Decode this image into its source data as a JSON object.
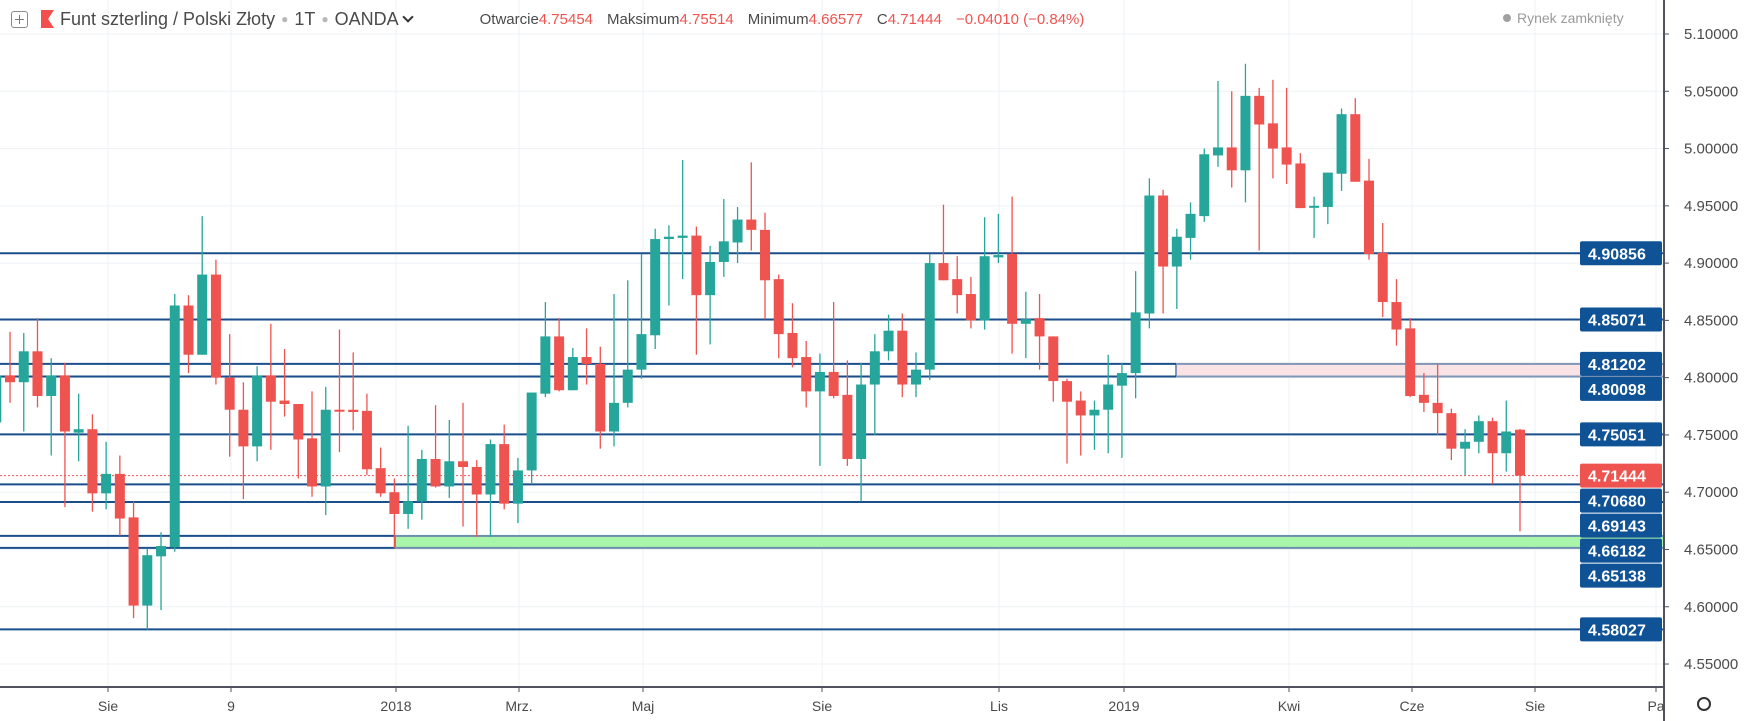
{
  "header": {
    "symbol_title": "Funt szterling / Polski Złoty",
    "interval": "1T",
    "source": "OANDA",
    "stats": [
      {
        "label": "Otwarcie",
        "value": "4.75454"
      },
      {
        "label": "Maksimum",
        "value": "4.75514"
      },
      {
        "label": "Minimum",
        "value": "4.66577"
      },
      {
        "label": "C",
        "value": "4.71444"
      }
    ],
    "change": "−0.04010 (−0.84%)",
    "market_status": "Rynek zamknięty"
  },
  "colors": {
    "up": "#26a69a",
    "down": "#ef5350",
    "level_line": "#1a4f8c",
    "level_label_bg": "#0f5296",
    "current_price": "#ef5350",
    "support_band": "#a9f5a9",
    "resistance_band": "#f9e3e5"
  },
  "chart_data": {
    "type": "candlestick",
    "title": "Funt szterling / Polski Złoty · 1T · OANDA",
    "ylim": [
      4.53,
      5.12
    ],
    "y_ticks": [
      "5.10000",
      "5.05000",
      "5.00000",
      "4.95000",
      "4.90000",
      "4.85000",
      "4.80000",
      "4.75000",
      "4.70000",
      "4.65000",
      "4.60000",
      "4.55000"
    ],
    "x_tick_labels": [
      "Sie",
      "9",
      "2018",
      "Mrz.",
      "Maj",
      "Sie",
      "Lis",
      "2019",
      "Kwi",
      "Cze",
      "Sie",
      "Pa"
    ],
    "grid": true,
    "current_price": "4.71444",
    "levels": [
      "4.90856",
      "4.85071",
      "4.81202",
      "4.80098",
      "4.75051",
      "4.70680",
      "4.69143",
      "4.66182",
      "4.65138",
      "4.58027"
    ],
    "bands": [
      {
        "name": "resistance-zone",
        "from": 4.80098,
        "to": 4.81202
      },
      {
        "name": "support-zone",
        "from": 4.65138,
        "to": 4.66182
      }
    ],
    "candles_ohlc": [
      [
        4.761,
        4.806,
        4.758,
        4.802
      ],
      [
        4.802,
        4.84,
        4.778,
        4.796
      ],
      [
        4.796,
        4.839,
        4.753,
        4.823
      ],
      [
        4.823,
        4.852,
        4.774,
        4.784
      ],
      [
        4.784,
        4.817,
        4.732,
        4.802
      ],
      [
        4.802,
        4.813,
        4.687,
        4.753
      ],
      [
        4.752,
        4.786,
        4.727,
        4.755
      ],
      [
        4.755,
        4.768,
        4.683,
        4.699
      ],
      [
        4.699,
        4.744,
        4.685,
        4.716
      ],
      [
        4.716,
        4.732,
        4.662,
        4.677
      ],
      [
        4.678,
        4.692,
        4.59,
        4.601
      ],
      [
        4.601,
        4.651,
        4.58,
        4.645
      ],
      [
        4.644,
        4.665,
        4.597,
        4.653
      ],
      [
        4.652,
        4.873,
        4.648,
        4.863
      ],
      [
        4.863,
        4.872,
        4.804,
        4.82
      ],
      [
        4.82,
        4.941,
        4.82,
        4.89
      ],
      [
        4.89,
        4.903,
        4.794,
        4.8
      ],
      [
        4.8,
        4.838,
        4.731,
        4.772
      ],
      [
        4.772,
        4.796,
        4.694,
        4.74
      ],
      [
        4.74,
        4.81,
        4.727,
        4.802
      ],
      [
        4.802,
        4.847,
        4.737,
        4.779
      ],
      [
        4.78,
        4.825,
        4.766,
        4.777
      ],
      [
        4.777,
        4.777,
        4.712,
        4.746
      ],
      [
        4.747,
        4.788,
        4.696,
        4.705
      ],
      [
        4.705,
        4.792,
        4.68,
        4.772
      ],
      [
        4.772,
        4.842,
        4.735,
        4.771
      ],
      [
        4.772,
        4.822,
        4.754,
        4.77
      ],
      [
        4.771,
        4.786,
        4.715,
        4.72
      ],
      [
        4.721,
        4.739,
        4.696,
        4.699
      ],
      [
        4.7,
        4.712,
        4.651,
        4.681
      ],
      [
        4.681,
        4.758,
        4.668,
        4.692
      ],
      [
        4.692,
        4.737,
        4.676,
        4.729
      ],
      [
        4.729,
        4.776,
        4.704,
        4.705
      ],
      [
        4.705,
        4.763,
        4.695,
        4.727
      ],
      [
        4.727,
        4.778,
        4.67,
        4.722
      ],
      [
        4.722,
        4.728,
        4.661,
        4.698
      ],
      [
        4.698,
        4.746,
        4.661,
        4.742
      ],
      [
        4.742,
        4.759,
        4.685,
        4.69
      ],
      [
        4.69,
        4.73,
        4.673,
        4.719
      ],
      [
        4.719,
        4.787,
        4.708,
        4.787
      ],
      [
        4.786,
        4.866,
        4.783,
        4.836
      ],
      [
        4.836,
        4.852,
        4.788,
        4.789
      ],
      [
        4.789,
        4.826,
        4.789,
        4.818
      ],
      [
        4.818,
        4.843,
        4.794,
        4.812
      ],
      [
        4.812,
        4.827,
        4.738,
        4.753
      ],
      [
        4.753,
        4.873,
        4.74,
        4.778
      ],
      [
        4.778,
        4.885,
        4.774,
        4.807
      ],
      [
        4.807,
        4.908,
        4.799,
        4.838
      ],
      [
        4.837,
        4.93,
        4.825,
        4.921
      ],
      [
        4.921,
        4.933,
        4.863,
        4.923
      ],
      [
        4.922,
        4.99,
        4.886,
        4.924
      ],
      [
        4.924,
        4.932,
        4.82,
        4.872
      ],
      [
        4.872,
        4.915,
        4.829,
        4.901
      ],
      [
        4.901,
        4.956,
        4.888,
        4.919
      ],
      [
        4.918,
        4.949,
        4.9,
        4.938
      ],
      [
        4.938,
        4.988,
        4.911,
        4.929
      ],
      [
        4.929,
        4.944,
        4.851,
        4.885
      ],
      [
        4.886,
        4.89,
        4.817,
        4.838
      ],
      [
        4.839,
        4.865,
        4.809,
        4.817
      ],
      [
        4.818,
        4.832,
        4.774,
        4.788
      ],
      [
        4.788,
        4.821,
        4.723,
        4.805
      ],
      [
        4.805,
        4.866,
        4.782,
        4.784
      ],
      [
        4.785,
        4.815,
        4.723,
        4.729
      ],
      [
        4.729,
        4.813,
        4.692,
        4.794
      ],
      [
        4.794,
        4.838,
        4.75,
        4.823
      ],
      [
        4.823,
        4.855,
        4.815,
        4.841
      ],
      [
        4.841,
        4.856,
        4.783,
        4.794
      ],
      [
        4.794,
        4.822,
        4.783,
        4.807
      ],
      [
        4.807,
        4.908,
        4.798,
        4.9
      ],
      [
        4.9,
        4.951,
        4.885,
        4.885
      ],
      [
        4.886,
        4.906,
        4.856,
        4.872
      ],
      [
        4.873,
        4.888,
        4.843,
        4.85
      ],
      [
        4.85,
        4.94,
        4.842,
        4.906
      ],
      [
        4.905,
        4.943,
        4.9,
        4.907
      ],
      [
        4.908,
        4.958,
        4.821,
        4.847
      ],
      [
        4.847,
        4.875,
        4.817,
        4.851
      ],
      [
        4.852,
        4.873,
        4.807,
        4.836
      ],
      [
        4.836,
        4.836,
        4.779,
        4.797
      ],
      [
        4.797,
        4.799,
        4.725,
        4.779
      ],
      [
        4.78,
        4.788,
        4.732,
        4.767
      ],
      [
        4.767,
        4.78,
        4.737,
        4.772
      ],
      [
        4.772,
        4.82,
        4.734,
        4.794
      ],
      [
        4.793,
        4.813,
        4.73,
        4.804
      ],
      [
        4.804,
        4.893,
        4.782,
        4.857
      ],
      [
        4.856,
        4.974,
        4.843,
        4.959
      ],
      [
        4.959,
        4.964,
        4.856,
        4.897
      ],
      [
        4.897,
        4.93,
        4.86,
        4.923
      ],
      [
        4.922,
        4.953,
        4.903,
        4.943
      ],
      [
        4.941,
        5.0,
        4.936,
        4.995
      ],
      [
        4.994,
        5.059,
        4.984,
        5.001
      ],
      [
        5.001,
        5.05,
        4.966,
        4.981
      ],
      [
        4.981,
        5.074,
        4.953,
        5.046
      ],
      [
        5.046,
        5.053,
        4.911,
        5.021
      ],
      [
        5.022,
        5.06,
        4.974,
        5.0
      ],
      [
        5.001,
        5.053,
        4.969,
        4.986
      ],
      [
        4.987,
        4.996,
        4.948,
        4.948
      ],
      [
        4.949,
        4.958,
        4.922,
        4.95
      ],
      [
        4.949,
        4.979,
        4.934,
        4.979
      ],
      [
        4.978,
        5.035,
        4.963,
        5.03
      ],
      [
        5.03,
        5.044,
        4.971,
        4.971
      ],
      [
        4.972,
        4.991,
        4.903,
        4.908
      ],
      [
        4.909,
        4.935,
        4.853,
        4.866
      ],
      [
        4.866,
        4.886,
        4.828,
        4.842
      ],
      [
        4.843,
        4.852,
        4.783,
        4.784
      ],
      [
        4.785,
        4.804,
        4.77,
        4.778
      ],
      [
        4.778,
        4.812,
        4.75,
        4.769
      ],
      [
        4.769,
        4.773,
        4.728,
        4.738
      ],
      [
        4.738,
        4.755,
        4.715,
        4.744
      ],
      [
        4.744,
        4.767,
        4.734,
        4.762
      ],
      [
        4.762,
        4.765,
        4.707,
        4.734
      ],
      [
        4.734,
        4.78,
        4.718,
        4.753
      ],
      [
        4.75454,
        4.75514,
        4.66577,
        4.71444
      ]
    ]
  }
}
